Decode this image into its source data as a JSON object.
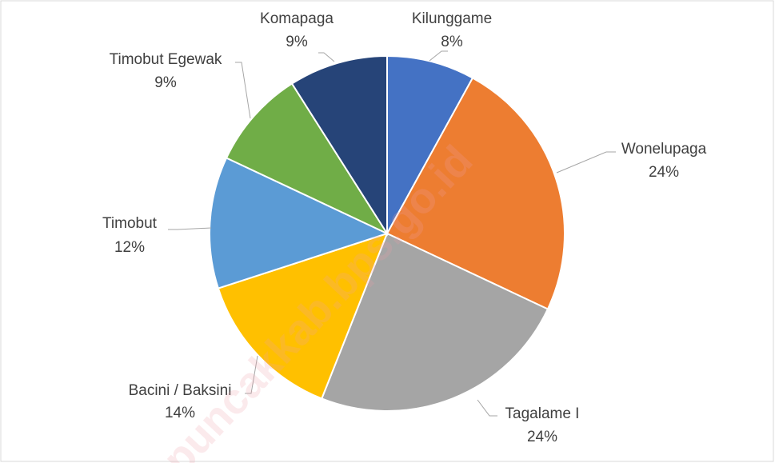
{
  "chart_data": {
    "type": "pie",
    "categories": [
      "Kilunggame",
      "Wonelupaga",
      "Tagalame I",
      "Bacini / Baksini",
      "Timobut",
      "Timobut Egewak",
      "Komapaga"
    ],
    "values": [
      8,
      24,
      24,
      14,
      12,
      9,
      9
    ],
    "value_labels": [
      "8%",
      "24%",
      "24%",
      "14%",
      "12%",
      "9%",
      "9%"
    ],
    "colors": [
      "#4472c4",
      "#ed7d31",
      "#a5a5a5",
      "#ffc000",
      "#5b9bd5",
      "#70ad47",
      "#264478"
    ],
    "watermark": "puncakkab.bps.go.id"
  }
}
